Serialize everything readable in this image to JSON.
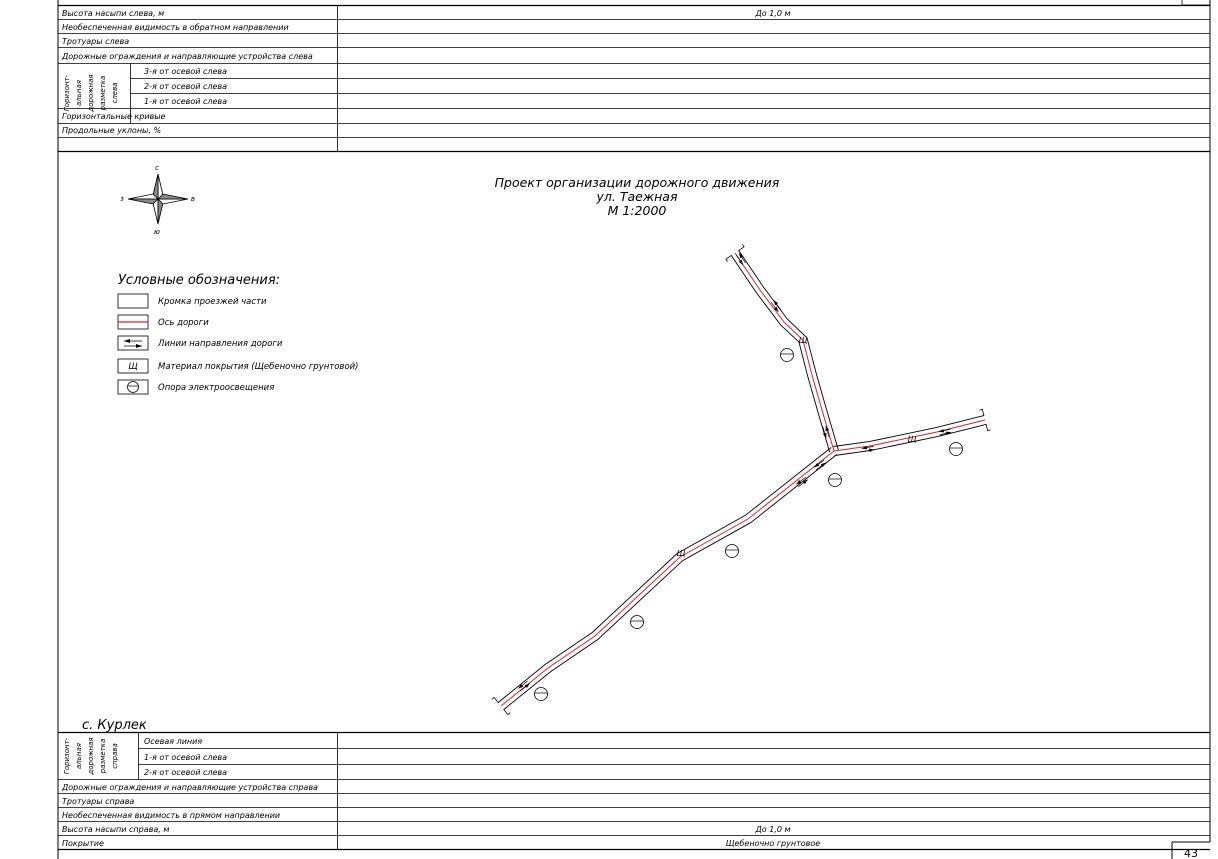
{
  "top_table": {
    "rows": [
      {
        "label": "Высота насыпи слева, м",
        "value": "До 1,0 м"
      },
      {
        "label": "Необеспеченная видимость в обратном направлении",
        "value": ""
      },
      {
        "label": "Тротуары слева",
        "value": ""
      },
      {
        "label": "Дорожные ограждения и направляющие устройства слева",
        "value": ""
      }
    ],
    "group_label": [
      "Горизонт-",
      "альная",
      "дорожная",
      "разметка",
      "слева"
    ],
    "group_rows": [
      "3-я от осевой слева",
      "2-я от осевой слева",
      "1-я от осевой слева"
    ],
    "tail_rows": [
      {
        "label": "Горизонтальные кривые",
        "value": ""
      },
      {
        "label": "Продольные уклоны, %",
        "value": ""
      }
    ]
  },
  "compass": {
    "north": "с",
    "south": "ю",
    "west": "з",
    "east": "в"
  },
  "title": {
    "line1": "Проект организации дорожного движения",
    "line2": "ул. Таежная",
    "line3": "М 1:2000"
  },
  "legend": {
    "title": "Условные обозначения:",
    "items": [
      {
        "icon": "carriageway-edge-icon",
        "label": "Кромка проезжей части"
      },
      {
        "icon": "road-axis-icon",
        "label": "Ось дороги"
      },
      {
        "icon": "direction-arrows-icon",
        "label": "Линии направления дороги"
      },
      {
        "icon": "surface-material-icon",
        "label": "Материал покрытия (Щебеночно грунтовой)",
        "symbol": "Щ"
      },
      {
        "icon": "lighting-pole-icon",
        "label": "Опора электроосвещения"
      }
    ]
  },
  "map": {
    "road_surface_symbol": "Щ",
    "axis_color": "#e0202a"
  },
  "village_name": "с. Курлек",
  "bottom_table": {
    "group_label": [
      "Горизонт-",
      "альная",
      "дорожная",
      "разметка",
      "справа"
    ],
    "group_rows": [
      "Осевая линия",
      "1-я от осевой слева",
      "2-я от осевой слева"
    ],
    "rows": [
      {
        "label": "Дорожные ограждения и направляющие устройства справа",
        "value": ""
      },
      {
        "label": "Тротуары справа",
        "value": ""
      },
      {
        "label": "Необеспеченная видимость в прямом направлении",
        "value": ""
      },
      {
        "label": "Высота насыпи справа, м",
        "value": "До 1,0 м"
      },
      {
        "label": "Покрытие",
        "value": "Щебеночно грунтовое"
      }
    ]
  },
  "page_number": "43"
}
